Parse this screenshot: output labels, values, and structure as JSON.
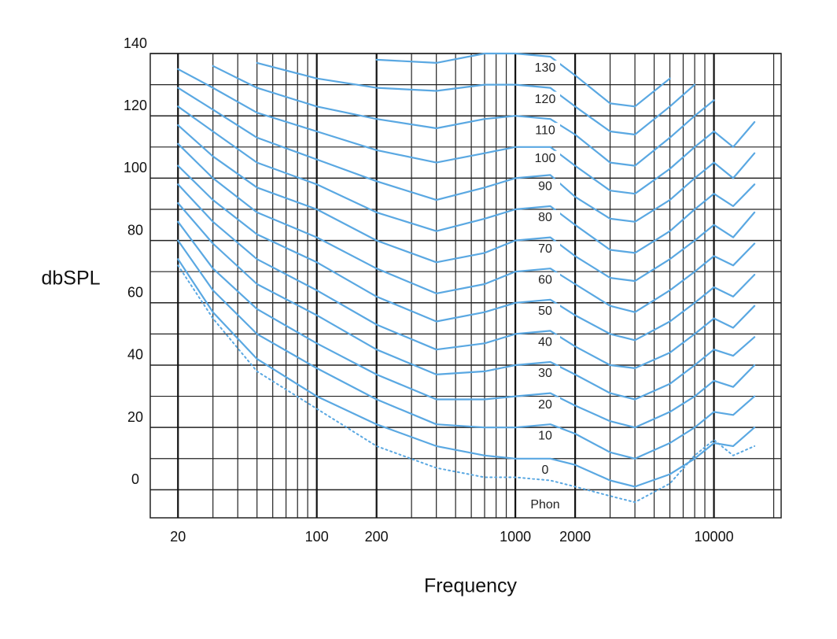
{
  "chart_data": {
    "type": "line",
    "xscale": "log",
    "x_label": "Frequency",
    "y_label": "dbSPL",
    "series_label_title": "Phon",
    "x": [
      20,
      30,
      50,
      100,
      200,
      400,
      700,
      1000,
      1500,
      2000,
      3000,
      4000,
      6000,
      8000,
      10000,
      12500,
      16000
    ],
    "xlim": [
      14.5,
      21800
    ],
    "xticks": [
      20,
      100,
      200,
      1000,
      2000,
      10000
    ],
    "x_minor_grid": [
      30,
      40,
      50,
      60,
      70,
      80,
      90,
      300,
      400,
      500,
      600,
      700,
      800,
      900,
      3000,
      4000,
      5000,
      6000,
      7000,
      8000,
      9000,
      20000
    ],
    "ylim": [
      -9,
      140
    ],
    "yticks": [
      0,
      20,
      40,
      60,
      80,
      100,
      120,
      140
    ],
    "y_minor_grid": [
      10,
      30,
      50,
      70,
      90,
      110,
      130
    ],
    "grid": true,
    "series": [
      {
        "name": "0",
        "color": "#5aa8e2",
        "values": [
          74,
          57,
          42,
          30,
          21,
          14,
          11,
          10,
          10,
          8,
          3,
          1,
          5,
          10,
          15,
          14,
          20
        ]
      },
      {
        "name": "10",
        "color": "#5aa8e2",
        "values": [
          80,
          64,
          50,
          39,
          29,
          21,
          20,
          20,
          21,
          18,
          12,
          10,
          15,
          20,
          25,
          24,
          30
        ]
      },
      {
        "name": "20",
        "color": "#5aa8e2",
        "values": [
          86,
          71,
          58,
          47,
          37,
          29,
          29,
          30,
          31,
          27,
          22,
          20,
          25,
          30,
          35,
          33,
          40
        ]
      },
      {
        "name": "30",
        "color": "#5aa8e2",
        "values": [
          92,
          79,
          66,
          56,
          45,
          37,
          38,
          40,
          41,
          37,
          31,
          29,
          34,
          40,
          45,
          43,
          49
        ]
      },
      {
        "name": "40",
        "color": "#5aa8e2",
        "values": [
          98,
          86,
          74,
          64,
          53,
          45,
          47,
          50,
          51,
          46,
          40,
          39,
          44,
          50,
          55,
          52,
          59
        ]
      },
      {
        "name": "50",
        "color": "#5aa8e2",
        "values": [
          104,
          93,
          82,
          73,
          62,
          54,
          57,
          60,
          61,
          56,
          50,
          48,
          54,
          60,
          65,
          62,
          69
        ]
      },
      {
        "name": "60",
        "color": "#5aa8e2",
        "values": [
          111,
          100,
          89,
          81,
          71,
          63,
          66,
          70,
          71,
          66,
          59,
          57,
          64,
          70,
          75,
          72,
          79
        ]
      },
      {
        "name": "70",
        "color": "#5aa8e2",
        "values": [
          117,
          107,
          97,
          90,
          80,
          73,
          76,
          80,
          81,
          75,
          68,
          67,
          74,
          80,
          85,
          81,
          89
        ]
      },
      {
        "name": "80",
        "color": "#5aa8e2",
        "values": [
          123,
          115,
          105,
          98,
          89,
          83,
          87,
          90,
          91,
          85,
          77,
          76,
          83,
          90,
          95,
          91,
          98
        ]
      },
      {
        "name": "90",
        "color": "#5aa8e2",
        "values": [
          129,
          122,
          113,
          106,
          99,
          93,
          97,
          100,
          101,
          94,
          87,
          86,
          93,
          100,
          105,
          100,
          108
        ]
      },
      {
        "name": "100",
        "color": "#5aa8e2",
        "values": [
          135,
          129,
          121,
          115,
          109,
          105,
          108,
          110,
          110,
          104,
          96,
          95,
          103,
          110,
          115,
          110,
          118
        ]
      },
      {
        "name": "110",
        "color": "#5aa8e2",
        "values": [
          null,
          136,
          129,
          123,
          119,
          116,
          119,
          120,
          119,
          114,
          105,
          104,
          113,
          120,
          125,
          null,
          null
        ]
      },
      {
        "name": "120",
        "color": "#5aa8e2",
        "values": [
          null,
          null,
          137,
          132,
          129,
          128,
          130,
          130,
          129,
          123,
          115,
          114,
          123,
          130,
          null,
          null,
          null
        ]
      },
      {
        "name": "130",
        "color": "#5aa8e2",
        "values": [
          null,
          null,
          null,
          null,
          138,
          137,
          140,
          140,
          139,
          133,
          124,
          123,
          132,
          null,
          null,
          null,
          null
        ]
      },
      {
        "color": "#5aa8e2",
        "dash": true,
        "values": [
          72,
          55,
          38,
          26,
          14,
          7,
          4,
          4,
          3,
          1,
          -2,
          -4,
          2,
          11,
          16,
          11,
          14
        ]
      }
    ]
  }
}
